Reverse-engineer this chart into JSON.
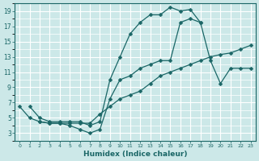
{
  "xlabel": "Humidex (Indice chaleur)",
  "bg_color": "#cce8e8",
  "line_color": "#1a6666",
  "grid_color": "#aacccc",
  "xlim": [
    -0.5,
    23.5
  ],
  "ylim": [
    2.0,
    20.0
  ],
  "xticks": [
    0,
    1,
    2,
    3,
    4,
    5,
    6,
    7,
    8,
    9,
    10,
    11,
    12,
    13,
    14,
    15,
    16,
    17,
    18,
    19,
    20,
    21,
    22,
    23
  ],
  "yticks": [
    3,
    5,
    7,
    9,
    11,
    13,
    15,
    17,
    19
  ],
  "line1_x": [
    1,
    2,
    3,
    4,
    5,
    6,
    7,
    8,
    9,
    10,
    11,
    12,
    13,
    14,
    15,
    16,
    17,
    18
  ],
  "line1_y": [
    6.5,
    5.0,
    4.5,
    4.5,
    4.5,
    4.5,
    4.0,
    4.5,
    10.0,
    13.0,
    16.0,
    17.5,
    18.5,
    18.5,
    19.5,
    19.0,
    19.2,
    17.5
  ],
  "line2_x": [
    0,
    1,
    2,
    3,
    4,
    5,
    6,
    7,
    8,
    9,
    10,
    11,
    12,
    13,
    14,
    15,
    16,
    17,
    18,
    19,
    20,
    21,
    22,
    23
  ],
  "line2_y": [
    6.5,
    5.0,
    4.5,
    4.3,
    4.3,
    4.3,
    4.3,
    4.3,
    5.5,
    6.5,
    7.5,
    8.0,
    8.5,
    9.5,
    10.5,
    11.0,
    11.5,
    12.0,
    12.5,
    13.0,
    13.3,
    13.5,
    14.0,
    14.5
  ],
  "line3_x": [
    2,
    3,
    4,
    5,
    6,
    7,
    8,
    9,
    10,
    11,
    12,
    13,
    14,
    15,
    16,
    17,
    18,
    19,
    20,
    21,
    22,
    23
  ],
  "line3_y": [
    4.5,
    4.3,
    4.3,
    4.0,
    3.5,
    3.0,
    3.5,
    7.5,
    10.0,
    10.5,
    11.5,
    12.0,
    12.5,
    12.5,
    17.5,
    18.0,
    17.5,
    12.5,
    9.5,
    11.5,
    11.5,
    11.5
  ]
}
